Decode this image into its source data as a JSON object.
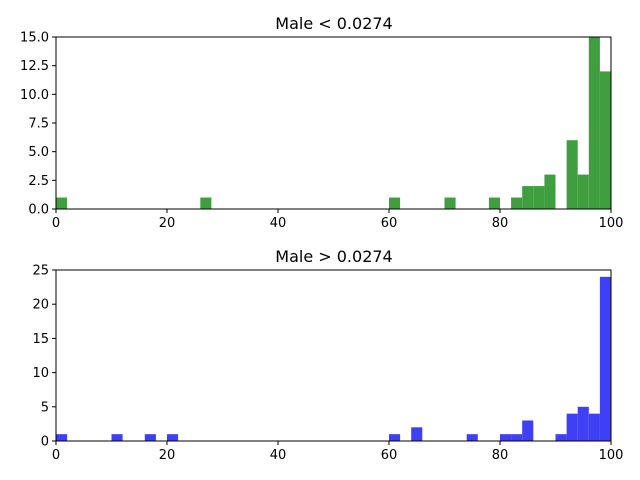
{
  "chart_data": [
    {
      "type": "bar",
      "subtype": "histogram",
      "title": "Male < 0.0274",
      "xlabel": "",
      "ylabel": "",
      "bar_color": "#3f9f3f",
      "xlim": [
        0,
        100
      ],
      "ylim": [
        0,
        15
      ],
      "x_ticks": [
        0,
        20,
        40,
        60,
        80,
        100
      ],
      "y_ticks": [
        0.0,
        2.5,
        5.0,
        7.5,
        10.0,
        12.5,
        15.0
      ],
      "y_tick_labels": [
        "0.0",
        "2.5",
        "5.0",
        "7.5",
        "10.0",
        "12.5",
        "15.0"
      ],
      "bins": [
        {
          "x0": 0,
          "x1": 2,
          "count": 1
        },
        {
          "x0": 26,
          "x1": 28,
          "count": 1
        },
        {
          "x0": 60,
          "x1": 62,
          "count": 1
        },
        {
          "x0": 70,
          "x1": 72,
          "count": 1
        },
        {
          "x0": 78,
          "x1": 80,
          "count": 1
        },
        {
          "x0": 82,
          "x1": 84,
          "count": 1
        },
        {
          "x0": 84,
          "x1": 86,
          "count": 2
        },
        {
          "x0": 86,
          "x1": 88,
          "count": 2
        },
        {
          "x0": 88,
          "x1": 90,
          "count": 3
        },
        {
          "x0": 92,
          "x1": 94,
          "count": 6
        },
        {
          "x0": 94,
          "x1": 96,
          "count": 3
        },
        {
          "x0": 96,
          "x1": 98,
          "count": 15
        },
        {
          "x0": 98,
          "x1": 100,
          "count": 12
        }
      ]
    },
    {
      "type": "bar",
      "subtype": "histogram",
      "title": "Male > 0.0274",
      "xlabel": "",
      "ylabel": "",
      "bar_color": "#3f3ff5",
      "xlim": [
        0,
        100
      ],
      "ylim": [
        0,
        25
      ],
      "x_ticks": [
        0,
        20,
        40,
        60,
        80,
        100
      ],
      "y_ticks": [
        0,
        5,
        10,
        15,
        20,
        25
      ],
      "y_tick_labels": [
        "0",
        "5",
        "10",
        "15",
        "20",
        "25"
      ],
      "bins": [
        {
          "x0": 0,
          "x1": 2,
          "count": 1
        },
        {
          "x0": 10,
          "x1": 12,
          "count": 1
        },
        {
          "x0": 16,
          "x1": 18,
          "count": 1
        },
        {
          "x0": 20,
          "x1": 22,
          "count": 1
        },
        {
          "x0": 60,
          "x1": 62,
          "count": 1
        },
        {
          "x0": 64,
          "x1": 66,
          "count": 2
        },
        {
          "x0": 74,
          "x1": 76,
          "count": 1
        },
        {
          "x0": 80,
          "x1": 82,
          "count": 1
        },
        {
          "x0": 82,
          "x1": 84,
          "count": 1
        },
        {
          "x0": 84,
          "x1": 86,
          "count": 3
        },
        {
          "x0": 90,
          "x1": 92,
          "count": 1
        },
        {
          "x0": 92,
          "x1": 94,
          "count": 4
        },
        {
          "x0": 94,
          "x1": 96,
          "count": 5
        },
        {
          "x0": 96,
          "x1": 98,
          "count": 4
        },
        {
          "x0": 98,
          "x1": 100,
          "count": 24
        }
      ]
    }
  ]
}
